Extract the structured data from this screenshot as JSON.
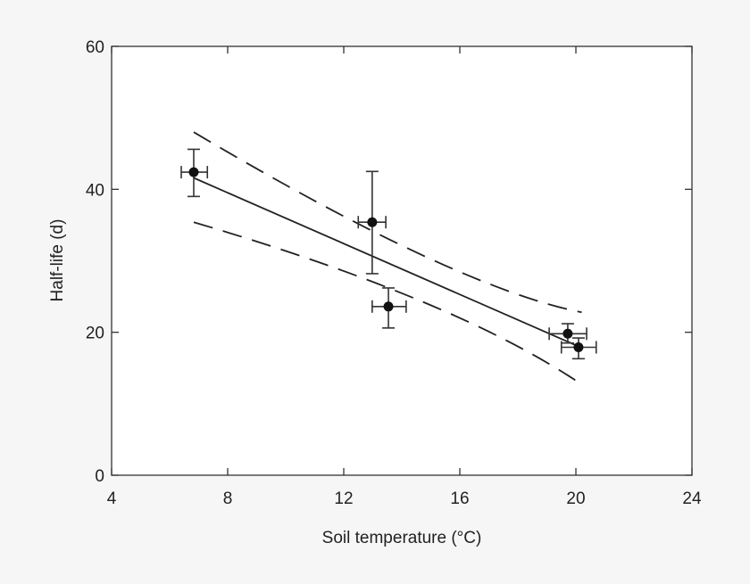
{
  "chart_data": {
    "type": "scatter",
    "title": "",
    "xlabel": "Soil temperature (°C)",
    "ylabel": "Half-life (d)",
    "xlim": [
      4,
      24
    ],
    "ylim": [
      0,
      60
    ],
    "xticks": [
      "4",
      "8",
      "12",
      "16",
      "20",
      "24"
    ],
    "yticks": [
      "0",
      "20",
      "40",
      "60"
    ],
    "grid": false,
    "points": [
      {
        "x": 6.83,
        "y": 42.4,
        "xerr": [
          6.4,
          7.3
        ],
        "yerr": [
          39.0,
          45.6
        ]
      },
      {
        "x": 12.98,
        "y": 35.4,
        "xerr": [
          12.5,
          13.45
        ],
        "yerr": [
          28.2,
          42.5
        ]
      },
      {
        "x": 13.54,
        "y": 23.6,
        "xerr": [
          12.98,
          14.15
        ],
        "yerr": [
          20.6,
          26.2
        ]
      },
      {
        "x": 19.72,
        "y": 19.8,
        "xerr": [
          19.08,
          20.37
        ],
        "yerr": [
          18.5,
          21.2
        ]
      },
      {
        "x": 20.09,
        "y": 17.9,
        "xerr": [
          19.5,
          20.7
        ],
        "yerr": [
          16.3,
          19.2
        ]
      }
    ],
    "regression": {
      "x": [
        6.83,
        20.1
      ],
      "y": [
        41.6,
        18.0
      ]
    },
    "upper_band": {
      "x": [
        6.83,
        14.7,
        20.2
      ],
      "y": [
        48.0,
        30.8,
        22.8
      ]
    },
    "lower_band": {
      "x": [
        6.83,
        14.7,
        20.2
      ],
      "y": [
        35.4,
        24.3,
        12.7
      ]
    }
  }
}
